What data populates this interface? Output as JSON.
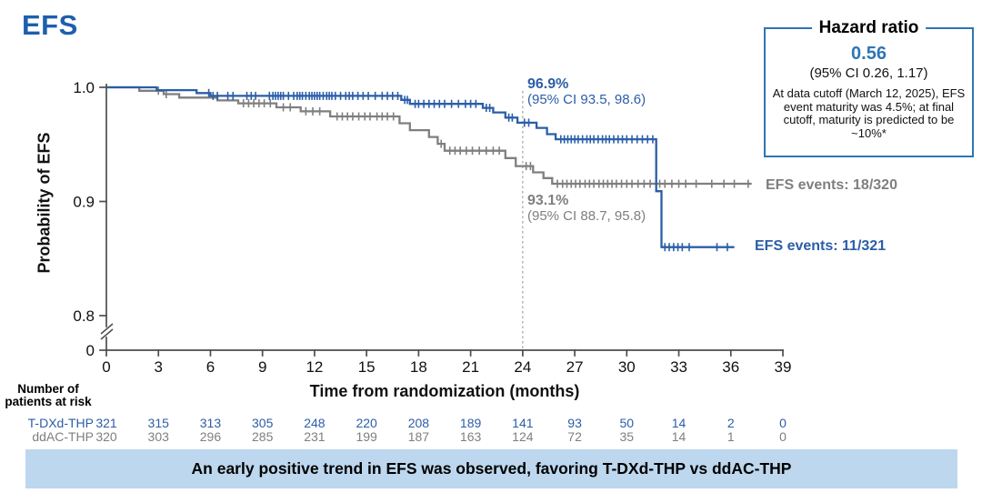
{
  "title": "EFS",
  "hazard_box": {
    "title": "Hazard ratio",
    "value": "0.56",
    "ci": "(95% CI 0.26, 1.17)",
    "note": "At data cutoff (March 12, 2025), EFS event maturity was 4.5%; at final cutoff, maturity is predicted to be ~10%*"
  },
  "annotations": {
    "tdxd": {
      "value": "96.9%",
      "ci": "(95% CI 93.5, 98.6)"
    },
    "ddac": {
      "value": "93.1%",
      "ci": "(95% CI 88.7, 95.8)"
    }
  },
  "events_labels": {
    "ddac": "EFS events: 18/320",
    "tdxd": "EFS events: 11/321"
  },
  "risk_table": {
    "header_line1": "Number of",
    "header_line2": "patients at risk",
    "rows": [
      {
        "label": "T-DXd-THP",
        "color": "#2b5ea7",
        "values": [
          321,
          315,
          313,
          305,
          248,
          220,
          208,
          189,
          141,
          93,
          50,
          14,
          2,
          0
        ]
      },
      {
        "label": "ddAC-THP",
        "color": "#7f7f7f",
        "values": [
          320,
          303,
          296,
          285,
          231,
          199,
          187,
          163,
          124,
          72,
          35,
          14,
          1,
          0
        ]
      }
    ]
  },
  "banner": "An early positive trend in EFS was observed, favoring T-DXd-THP vs ddAC-THP",
  "colors": {
    "tdxd_blue": "#2b5ea7",
    "ddac_gray": "#7f7f7f",
    "hazard_blue": "#2e75b6",
    "title_blue": "#1e5fae",
    "banner_bg": "#bdd7ee",
    "axis": "#4d4d4d",
    "landmark_line": "#a0a0a0"
  },
  "chart_data": {
    "type": "line",
    "subtype": "kaplan-meier-step",
    "title": "EFS",
    "xlabel": "Time from randomization (months)",
    "ylabel": "Probability of EFS",
    "x_ticks": [
      0,
      3,
      6,
      9,
      12,
      15,
      18,
      21,
      24,
      27,
      30,
      33,
      36,
      39
    ],
    "y_tick_labels": [
      "1.0",
      "0.9",
      "0.8",
      "0"
    ],
    "xlim": [
      0,
      39
    ],
    "ylim": [
      0.8,
      1.0
    ],
    "y_axis_break": true,
    "grid": false,
    "legend_position": "right-of-curves",
    "landmark_month": 24,
    "series": [
      {
        "name": "ddAC-THP",
        "color": "#7f7f7f",
        "landmark_value_pct": 93.1,
        "landmark_ci": [
          88.7,
          95.8
        ],
        "events": "18/320",
        "end_month": 37.2,
        "steps": [
          [
            1.9,
            0.997
          ],
          [
            3.3,
            0.994
          ],
          [
            4.2,
            0.991
          ],
          [
            6.4,
            0.9885
          ],
          [
            7.6,
            0.986
          ],
          [
            9.8,
            0.9825
          ],
          [
            11.2,
            0.979
          ],
          [
            12.9,
            0.9745
          ],
          [
            16.9,
            0.9685
          ],
          [
            17.5,
            0.9625
          ],
          [
            18.6,
            0.9565
          ],
          [
            19.1,
            0.9505
          ],
          [
            19.5,
            0.9445
          ],
          [
            23.0,
            0.938
          ],
          [
            23.6,
            0.931
          ],
          [
            24.6,
            0.9255
          ],
          [
            25.2,
            0.9205
          ],
          [
            25.7,
            0.9155
          ]
        ],
        "censors": [
          3.0,
          3.45,
          7.9,
          8.2,
          8.5,
          8.8,
          9.1,
          9.45,
          10.2,
          10.6,
          11.5,
          11.9,
          12.3,
          13.3,
          13.6,
          13.9,
          14.2,
          14.55,
          14.9,
          15.2,
          15.6,
          15.9,
          16.2,
          16.55,
          19.3,
          19.8,
          20.1,
          20.4,
          20.75,
          21.1,
          21.5,
          21.9,
          22.3,
          22.65,
          24.2,
          24.45,
          26.0,
          26.3,
          26.55,
          26.8,
          27.05,
          27.3,
          27.6,
          27.85,
          28.1,
          28.4,
          28.65,
          28.9,
          29.15,
          29.4,
          29.7,
          30.0,
          30.3,
          30.65,
          31.0,
          31.35,
          31.9,
          32.2,
          32.6,
          33.0,
          33.4,
          34.0,
          34.9,
          35.6,
          36.2,
          37.0
        ]
      },
      {
        "name": "T-DXd-THP",
        "color": "#2b5ea7",
        "landmark_value_pct": 96.9,
        "landmark_ci": [
          93.5,
          98.6
        ],
        "events": "11/321",
        "end_month": 36.2,
        "steps": [
          [
            2.9,
            0.9975
          ],
          [
            5.2,
            0.995
          ],
          [
            6.0,
            0.9925
          ],
          [
            17.0,
            0.989
          ],
          [
            17.5,
            0.9855
          ],
          [
            21.7,
            0.982
          ],
          [
            22.3,
            0.978
          ],
          [
            23.0,
            0.9735
          ],
          [
            23.7,
            0.969
          ],
          [
            24.8,
            0.9645
          ],
          [
            25.4,
            0.959
          ],
          [
            25.9,
            0.9545
          ],
          [
            31.7,
            0.909
          ],
          [
            32.0,
            0.86
          ]
        ],
        "censors": [
          5.9,
          6.15,
          6.4,
          7.0,
          7.3,
          8.1,
          8.35,
          8.6,
          9.4,
          9.6,
          9.75,
          9.9,
          10.05,
          10.2,
          10.5,
          10.8,
          11.0,
          11.15,
          11.3,
          11.5,
          11.7,
          11.85,
          12.0,
          12.15,
          12.3,
          12.5,
          12.7,
          12.85,
          13.0,
          13.2,
          13.5,
          13.8,
          14.0,
          14.2,
          14.5,
          14.8,
          15.1,
          15.5,
          15.9,
          16.2,
          16.5,
          16.8,
          17.2,
          17.35,
          17.8,
          18.0,
          18.3,
          18.6,
          18.9,
          19.2,
          19.5,
          19.9,
          20.3,
          20.7,
          21.0,
          21.3,
          21.9,
          22.1,
          23.2,
          23.4,
          24.1,
          24.35,
          26.2,
          26.4,
          26.6,
          26.8,
          27.0,
          27.2,
          27.45,
          27.7,
          27.9,
          28.1,
          28.35,
          28.6,
          28.8,
          29.0,
          29.25,
          29.5,
          29.75,
          30.0,
          30.3,
          30.6,
          30.9,
          31.2,
          31.5,
          32.2,
          32.45,
          32.7,
          32.95,
          33.2,
          33.6,
          35.2,
          35.8
        ]
      }
    ]
  }
}
